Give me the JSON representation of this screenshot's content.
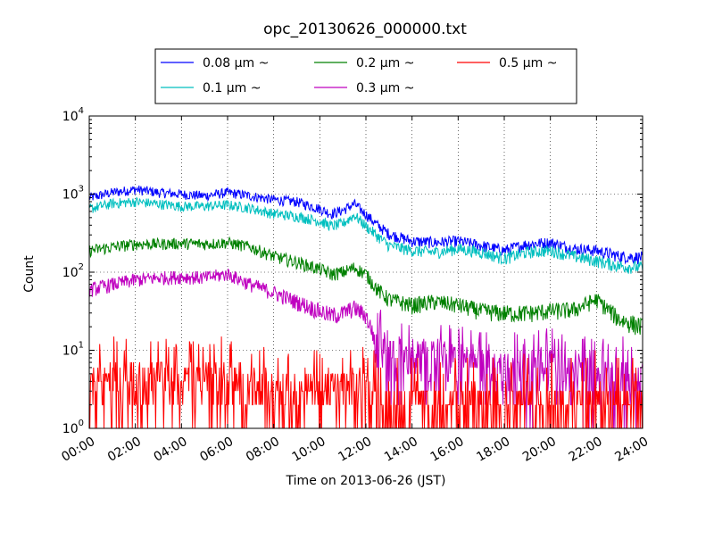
{
  "chart_data": {
    "type": "line",
    "title": "opc_20130626_000000.txt",
    "xlabel": "Time on 2013-06-26 (JST)",
    "ylabel": "Count",
    "yscale": "log",
    "xlim": [
      "00:00",
      "24:00"
    ],
    "ylim": [
      1,
      10000
    ],
    "grid": true,
    "legend_position": "top, above plot",
    "x_ticks": [
      "00:00",
      "02:00",
      "04:00",
      "06:00",
      "08:00",
      "10:00",
      "12:00",
      "14:00",
      "16:00",
      "18:00",
      "20:00",
      "22:00",
      "24:00"
    ],
    "y_ticks": [
      {
        "value": 1,
        "base": "10",
        "exp": "0"
      },
      {
        "value": 10,
        "base": "10",
        "exp": "1"
      },
      {
        "value": 100,
        "base": "10",
        "exp": "2"
      },
      {
        "value": 1000,
        "base": "10",
        "exp": "3"
      },
      {
        "value": 10000,
        "base": "10",
        "exp": "4"
      }
    ],
    "x_hours": [
      0,
      1,
      2,
      3,
      4,
      5,
      6,
      7,
      8,
      9,
      10,
      10.5,
      11,
      11.5,
      12,
      12.5,
      13,
      14,
      15,
      16,
      17,
      18,
      19,
      20,
      21,
      22,
      23,
      24
    ],
    "series": [
      {
        "name": "0.08 μm ~",
        "color": "#0000ff",
        "values": [
          900,
          1050,
          1150,
          1050,
          1000,
          950,
          1050,
          950,
          850,
          800,
          650,
          560,
          620,
          750,
          550,
          400,
          310,
          250,
          240,
          250,
          220,
          190,
          230,
          240,
          200,
          190,
          160,
          155
        ]
      },
      {
        "name": "0.1 μm ~",
        "color": "#00bfbf",
        "values": [
          650,
          760,
          800,
          750,
          700,
          700,
          730,
          660,
          560,
          520,
          450,
          390,
          420,
          540,
          390,
          290,
          220,
          190,
          180,
          200,
          180,
          150,
          180,
          190,
          160,
          140,
          120,
          115
        ]
      },
      {
        "name": "0.2 μm ~",
        "color": "#008000",
        "values": [
          190,
          210,
          230,
          230,
          235,
          230,
          240,
          210,
          160,
          135,
          110,
          95,
          100,
          115,
          95,
          60,
          45,
          38,
          42,
          38,
          32,
          30,
          30,
          32,
          33,
          45,
          25,
          20
        ]
      },
      {
        "name": "0.3 μm ~",
        "color": "#bf00bf",
        "values": [
          60,
          70,
          80,
          85,
          88,
          85,
          95,
          70,
          55,
          42,
          32,
          28,
          30,
          35,
          28,
          12,
          9,
          7,
          8,
          7,
          6,
          6,
          5,
          6,
          5,
          5,
          4,
          4
        ]
      },
      {
        "name": "0.5 μm ~",
        "color": "#ff0000",
        "values": [
          4,
          4,
          4,
          4,
          4,
          4,
          4,
          3,
          3,
          3,
          3,
          3,
          3,
          3,
          3,
          2,
          2,
          2,
          2,
          2,
          2,
          2,
          2,
          2,
          2,
          2,
          2,
          2
        ]
      }
    ]
  }
}
